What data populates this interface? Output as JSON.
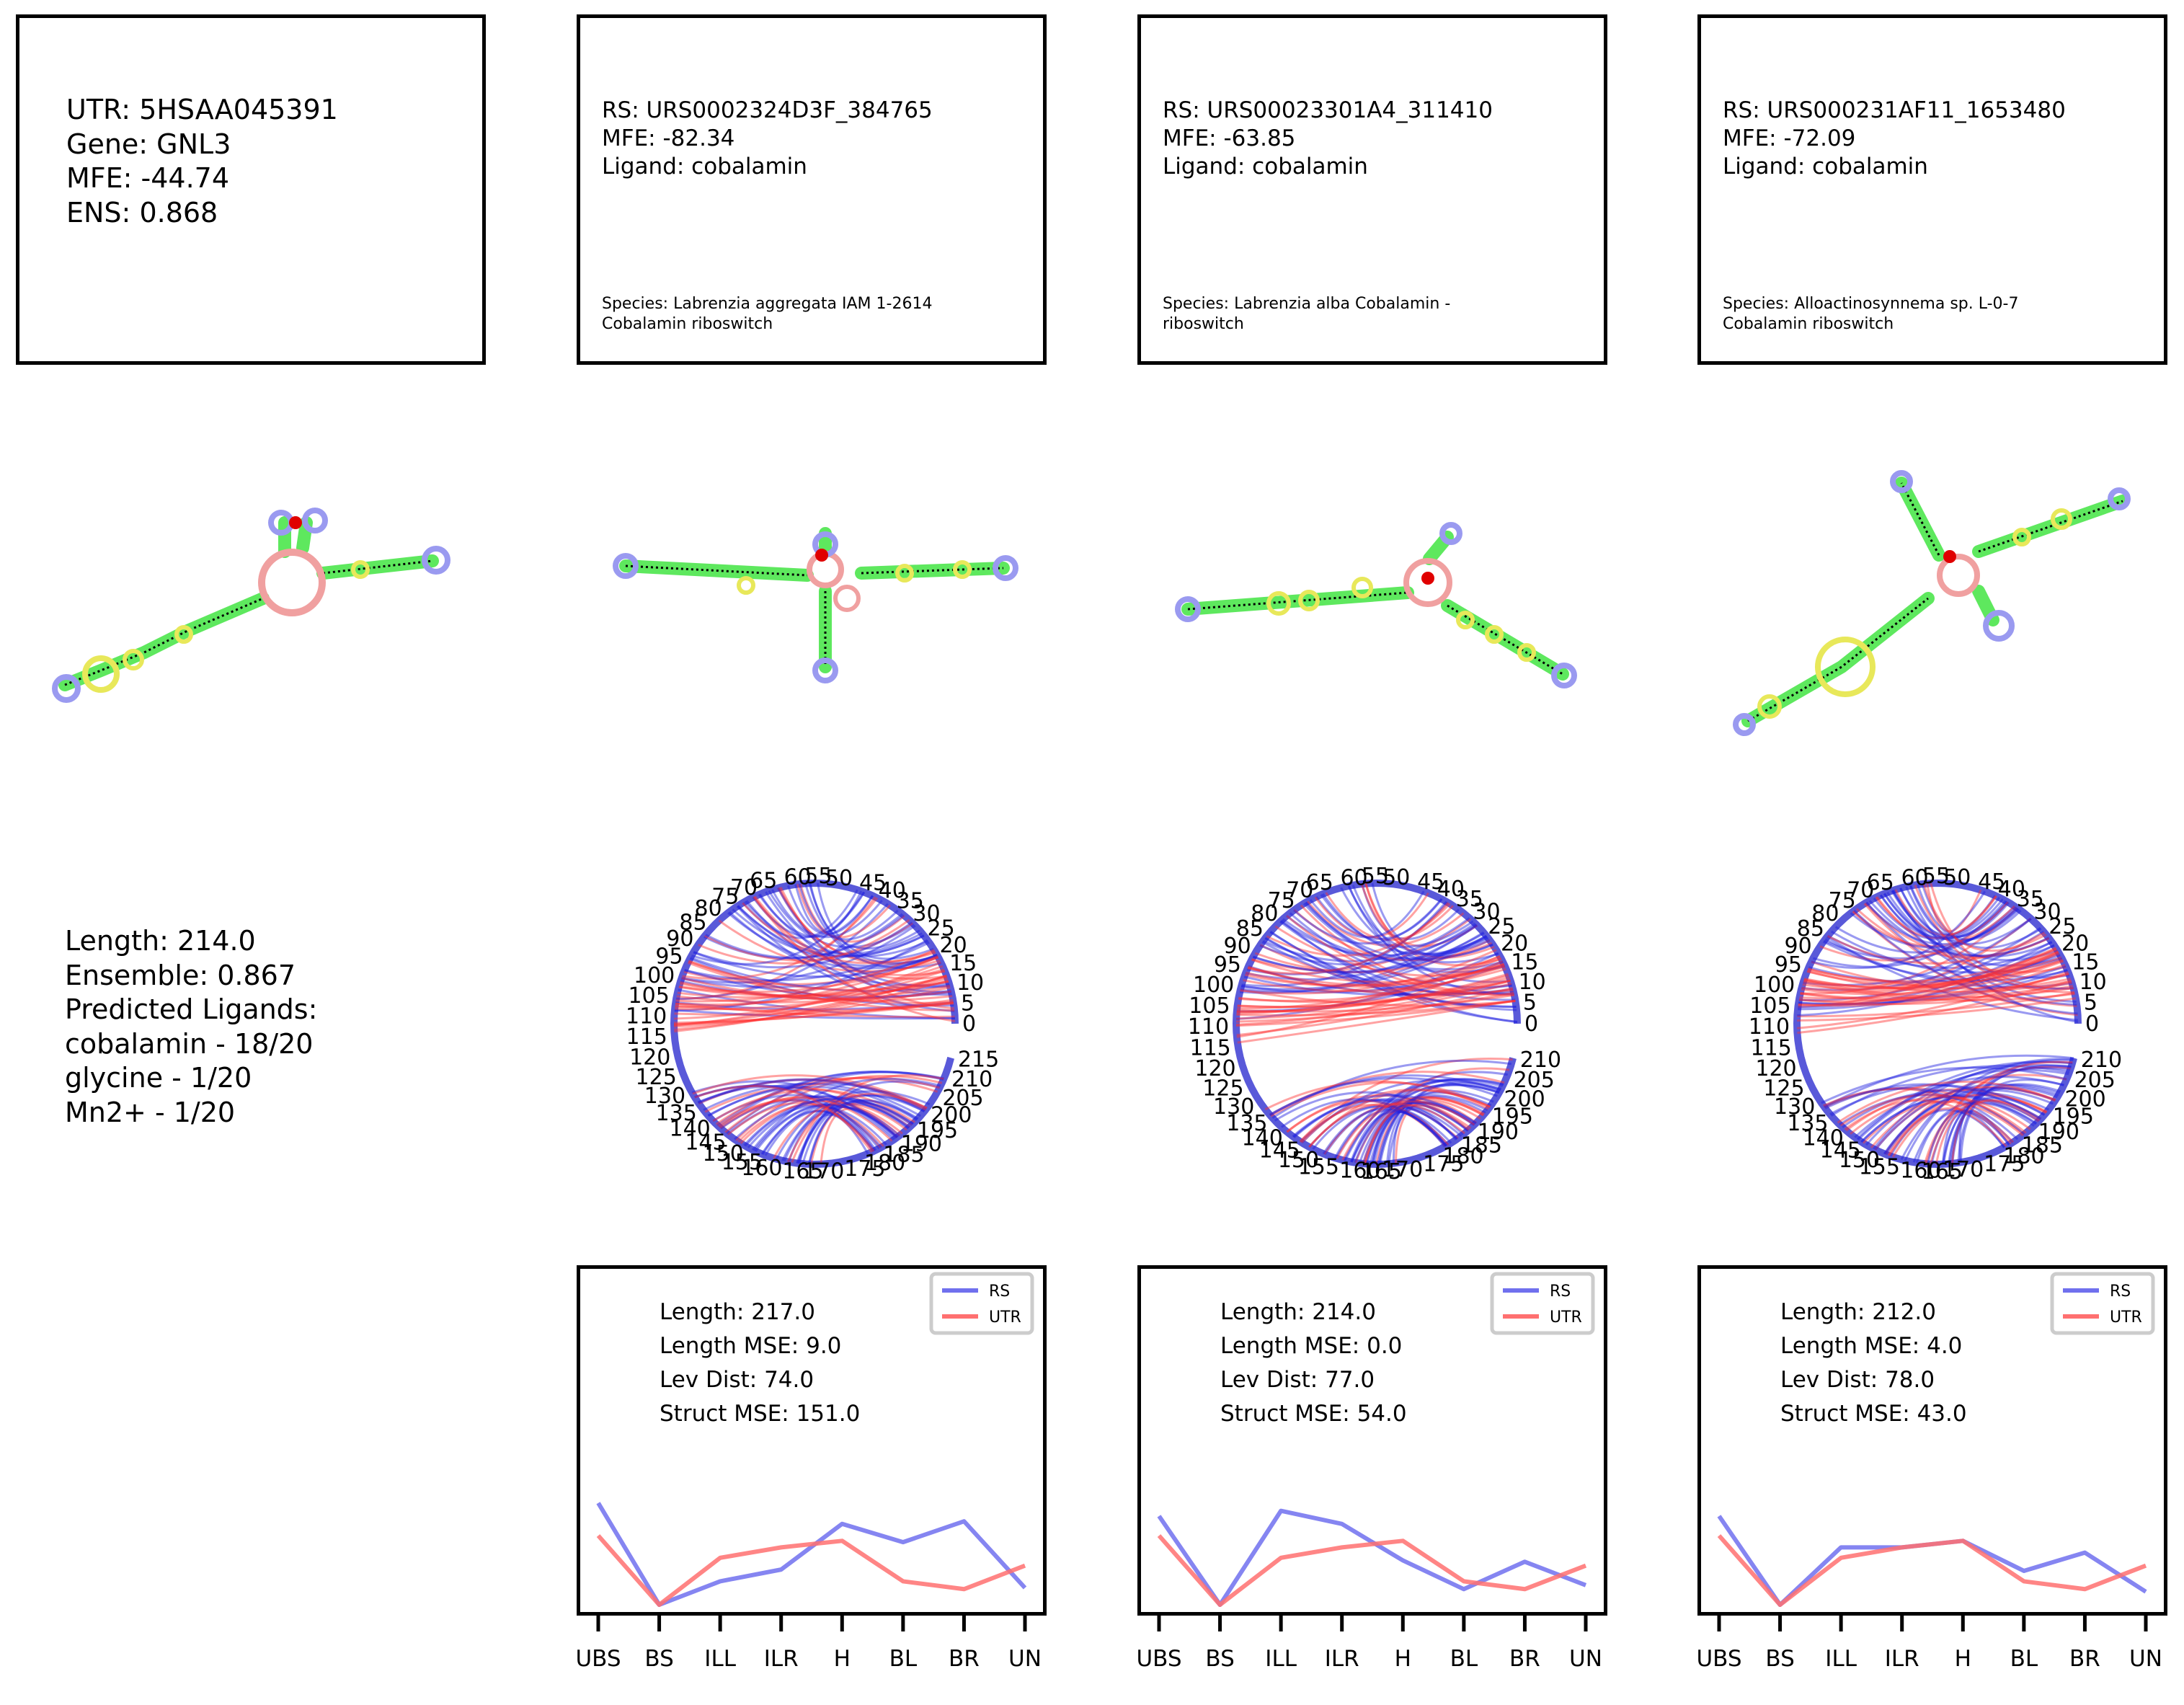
{
  "utr_box": {
    "lines": [
      "UTR: 5HSAA045391",
      "Gene: GNL3",
      "MFE: -44.74",
      "ENS: 0.868"
    ]
  },
  "rs_boxes": [
    {
      "lines": [
        "RS: URS0002324D3F_384765",
        "MFE: -82.34",
        "Ligand: cobalamin"
      ],
      "species": "Species: Labrenzia aggregata IAM 1-2614 Cobalamin riboswitch"
    },
    {
      "lines": [
        "RS: URS00023301A4_311410",
        "MFE: -63.85",
        "Ligand: cobalamin"
      ],
      "species": "Species: Labrenzia alba Cobalamin -riboswitch"
    },
    {
      "lines": [
        "RS: URS000231AF11_1653480",
        "MFE: -72.09",
        "Ligand: cobalamin"
      ],
      "species": "Species: Alloactinosynnema sp. L-0-7 Cobalamin riboswitch"
    }
  ],
  "summary": {
    "lines": [
      "Length: 214.0",
      "Ensemble: 0.867",
      "Predicted Ligands:",
      "cobalamin - 18/20",
      "glycine - 1/20",
      "Mn2+ - 1/20"
    ]
  },
  "arc_ticks": [
    [
      "0",
      "5",
      "10",
      "15",
      "20",
      "25",
      "30",
      "35",
      "40",
      "45",
      "50",
      "55",
      "60",
      "65",
      "70",
      "75",
      "80",
      "85",
      "90",
      "95",
      "100",
      "105",
      "110",
      "115",
      "120",
      "125",
      "130",
      "135",
      "140",
      "145",
      "150",
      "155",
      "160",
      "165",
      "170",
      "175",
      "180",
      "185",
      "190",
      "195",
      "200",
      "205",
      "210",
      "215"
    ],
    [
      "0",
      "5",
      "10",
      "15",
      "20",
      "25",
      "30",
      "35",
      "40",
      "45",
      "50",
      "55",
      "60",
      "65",
      "70",
      "75",
      "80",
      "85",
      "90",
      "95",
      "100",
      "105",
      "110",
      "115",
      "120",
      "125",
      "130",
      "135",
      "140",
      "145",
      "150",
      "155",
      "160",
      "165",
      "170",
      "175",
      "180",
      "185",
      "190",
      "195",
      "200",
      "205",
      "210"
    ],
    [
      "0",
      "5",
      "10",
      "15",
      "20",
      "25",
      "30",
      "35",
      "40",
      "45",
      "50",
      "55",
      "60",
      "65",
      "70",
      "75",
      "80",
      "85",
      "90",
      "95",
      "100",
      "105",
      "110",
      "115",
      "120",
      "125",
      "130",
      "135",
      "140",
      "145",
      "150",
      "155",
      "160",
      "165",
      "170",
      "175",
      "180",
      "185",
      "190",
      "195",
      "200",
      "205",
      "210"
    ]
  ],
  "colors": {
    "rs": "#7070ee",
    "utr": "#ff7070",
    "stem": "#5ee85e",
    "hairpin": "#9a9af0",
    "interior": "#e8e85a",
    "multiloop": "#f0a0a0"
  },
  "chart_data": [
    {
      "type": "line",
      "categories": [
        "UBS",
        "BS",
        "ILL",
        "ILR",
        "H",
        "BL",
        "BR",
        "UN"
      ],
      "series": [
        {
          "name": "RS",
          "values": [
            0.78,
            0.0,
            0.18,
            0.27,
            0.62,
            0.48,
            0.64,
            0.13
          ]
        },
        {
          "name": "UTR",
          "values": [
            0.53,
            0.0,
            0.36,
            0.44,
            0.49,
            0.18,
            0.12,
            0.3
          ]
        }
      ],
      "legend": "top-right",
      "annotations": [
        "Length: 217.0",
        "Length MSE: 9.0",
        "Lev Dist: 74.0",
        "Struct MSE: 151.0"
      ],
      "grid": false
    },
    {
      "type": "line",
      "categories": [
        "UBS",
        "BS",
        "ILL",
        "ILR",
        "H",
        "BL",
        "BR",
        "UN"
      ],
      "series": [
        {
          "name": "RS",
          "values": [
            0.68,
            0.0,
            0.72,
            0.62,
            0.34,
            0.12,
            0.33,
            0.15
          ]
        },
        {
          "name": "UTR",
          "values": [
            0.53,
            0.0,
            0.36,
            0.44,
            0.49,
            0.18,
            0.12,
            0.3
          ]
        }
      ],
      "legend": "top-right",
      "annotations": [
        "Length: 214.0",
        "Length MSE: 0.0",
        "Lev Dist: 77.0",
        "Struct MSE: 54.0"
      ],
      "grid": false
    },
    {
      "type": "line",
      "categories": [
        "UBS",
        "BS",
        "ILL",
        "ILR",
        "H",
        "BL",
        "BR",
        "UN"
      ],
      "series": [
        {
          "name": "RS",
          "values": [
            0.68,
            0.0,
            0.44,
            0.44,
            0.49,
            0.26,
            0.4,
            0.1
          ]
        },
        {
          "name": "UTR",
          "values": [
            0.53,
            0.0,
            0.36,
            0.44,
            0.49,
            0.18,
            0.12,
            0.3
          ]
        }
      ],
      "legend": "top-right",
      "annotations": [
        "Length: 212.0",
        "Length MSE: 4.0",
        "Lev Dist: 78.0",
        "Struct MSE: 43.0"
      ],
      "grid": false
    }
  ]
}
